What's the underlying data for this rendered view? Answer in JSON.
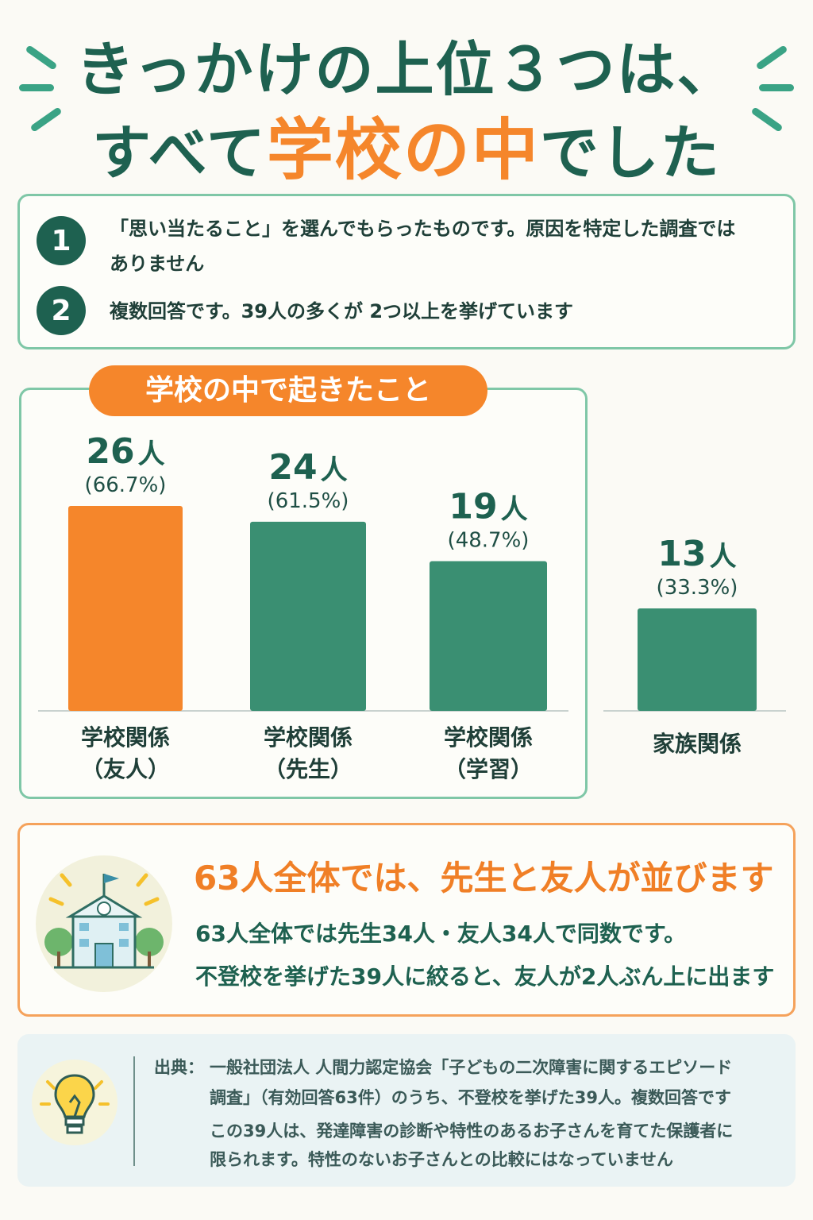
{
  "title": {
    "line1": "きっかけの上位３つは、",
    "line2_prefix": "すべて",
    "line2_highlight": "学校の中",
    "line2_suffix": "でした"
  },
  "notes": [
    {
      "number": "1",
      "text_line1": "「思い当たること」を選んでもらったものです。原因を特定した調査では",
      "text_line2": "ありません"
    },
    {
      "number": "2",
      "text_line1": "複数回答です。39人の多くが 2つ以上を挙げています"
    }
  ],
  "school_panel_title": "学校の中で起きたこと",
  "colors": {
    "accent_orange": "#f5862b",
    "bar_green": "#3a8f72",
    "dark_green": "#1e6150"
  },
  "chart_data": {
    "type": "bar",
    "title": "",
    "xlabel": "",
    "ylabel": "",
    "unit": "人",
    "categories": [
      {
        "line1": "学校関係",
        "line2": "（友人）"
      },
      {
        "line1": "学校関係",
        "line2": "（先生）"
      },
      {
        "line1": "学校関係",
        "line2": "（学習）"
      },
      {
        "line1": "家族関係",
        "line2": ""
      }
    ],
    "values": [
      26,
      24,
      19,
      13
    ],
    "value_labels": [
      "26",
      "24",
      "19",
      "13"
    ],
    "percent_labels": [
      "(66.7%)",
      "(61.5%)",
      "(48.7%)",
      "(33.3%)"
    ],
    "highlight_index": 0,
    "ylim": [
      0,
      40
    ],
    "grid": false,
    "legend": "none"
  },
  "summary": {
    "heading": "63人全体では、先生と友人が並びます",
    "line1": "63人全体では先生34人・友人34人で同数です。",
    "line2": "不登校を挙げた39人に絞ると、友人が2人ぶん上に出ます",
    "icon": "school-building-icon"
  },
  "source": {
    "icon": "lightbulb-icon",
    "label": "出典：",
    "line1": "一般社団法人 人間力認定協会「子どもの二次障害に関するエピソード",
    "line2": "調査」（有効回答63件）のうち、不登校を挙げた39人。複数回答です",
    "line3": "この39人は、発達障害の診断や特性のあるお子さんを育てた保護者に",
    "line4": "限られます。特性のないお子さんとの比較にはなっていません"
  }
}
